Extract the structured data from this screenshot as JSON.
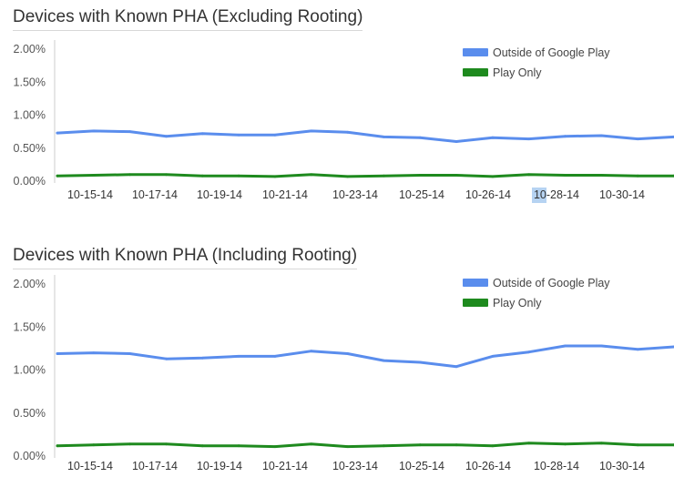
{
  "colors": {
    "outside": "#5a8ded",
    "play_only": "#1e8a1e",
    "axis": "#cccccc",
    "highlight": "#b6d3f2"
  },
  "chart_data": [
    {
      "type": "line",
      "id": "excluding",
      "title": "Devices with Known PHA (Excluding Rooting)",
      "y_tick_labels": [
        "2.00%",
        "1.50%",
        "1.00%",
        "0.50%",
        "0.00%"
      ],
      "y_ticks": [
        2.0,
        1.5,
        1.0,
        0.5,
        0.0
      ],
      "ylim": [
        0,
        2.0
      ],
      "x_tick_labels": [
        "10-15-14",
        "10-17-14",
        "10-19-14",
        "10-21-14",
        "10-23-14",
        "10-25-14",
        "10-26-14",
        "10-28-14",
        "10-30-14"
      ],
      "legend_position": "top-right",
      "grid": false,
      "series": [
        {
          "name": "Outside of Google Play",
          "values": [
            0.73,
            0.76,
            0.75,
            0.68,
            0.72,
            0.7,
            0.7,
            0.76,
            0.74,
            0.67,
            0.66,
            0.6,
            0.66,
            0.64,
            0.68,
            0.69,
            0.64,
            0.67
          ]
        },
        {
          "name": "Play Only",
          "values": [
            0.08,
            0.09,
            0.1,
            0.1,
            0.08,
            0.08,
            0.07,
            0.1,
            0.07,
            0.08,
            0.09,
            0.09,
            0.07,
            0.1,
            0.09,
            0.09,
            0.08,
            0.08
          ]
        }
      ]
    },
    {
      "type": "line",
      "id": "including",
      "title": "Devices with Known PHA (Including Rooting)",
      "y_tick_labels": [
        "2.00%",
        "1.50%",
        "1.00%",
        "0.50%",
        "0.00%"
      ],
      "y_ticks": [
        2.0,
        1.5,
        1.0,
        0.5,
        0.0
      ],
      "ylim": [
        0,
        2.0
      ],
      "x_tick_labels": [
        "10-15-14",
        "10-17-14",
        "10-19-14",
        "10-21-14",
        "10-23-14",
        "10-25-14",
        "10-26-14",
        "10-28-14",
        "10-30-14"
      ],
      "legend_position": "top-right",
      "grid": false,
      "series": [
        {
          "name": "Outside of Google Play",
          "values": [
            1.19,
            1.2,
            1.19,
            1.13,
            1.14,
            1.16,
            1.16,
            1.22,
            1.19,
            1.11,
            1.09,
            1.04,
            1.16,
            1.21,
            1.28,
            1.28,
            1.24,
            1.27
          ]
        },
        {
          "name": "Play Only",
          "values": [
            0.12,
            0.13,
            0.14,
            0.14,
            0.12,
            0.12,
            0.11,
            0.14,
            0.11,
            0.12,
            0.13,
            0.13,
            0.12,
            0.15,
            0.14,
            0.15,
            0.13,
            0.13
          ]
        }
      ]
    }
  ]
}
